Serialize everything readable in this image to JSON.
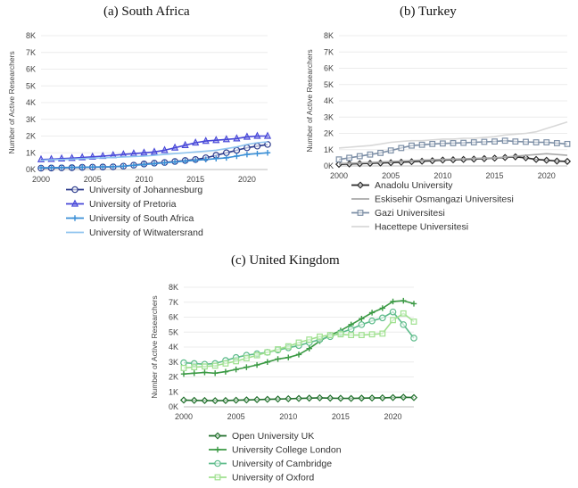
{
  "chart_data": [
    {
      "id": "sa",
      "type": "line",
      "title": "(a)  South Africa",
      "xlabel": "",
      "ylabel": "Number of Active Researchers",
      "xlim": [
        2000,
        2022
      ],
      "ylim": [
        0,
        8000
      ],
      "xticks": [
        "2000",
        "2005",
        "2010",
        "2015",
        "2020"
      ],
      "yticks": [
        "0K",
        "1K",
        "2K",
        "3K",
        "4K",
        "5K",
        "6K",
        "7K",
        "8K"
      ],
      "legend_position": "bottom",
      "series": [
        {
          "name": "University of Johannesburg",
          "color": "#2b3a8c",
          "marker": "circle",
          "x": [
            2000,
            2001,
            2002,
            2003,
            2004,
            2005,
            2006,
            2007,
            2008,
            2009,
            2010,
            2011,
            2012,
            2013,
            2014,
            2015,
            2016,
            2017,
            2018,
            2019,
            2020,
            2021,
            2022
          ],
          "values": [
            80,
            90,
            100,
            110,
            130,
            140,
            150,
            160,
            200,
            260,
            330,
            380,
            420,
            480,
            540,
            600,
            700,
            850,
            1000,
            1150,
            1300,
            1400,
            1500
          ]
        },
        {
          "name": "University of Pretoria",
          "color": "#4747d8",
          "marker": "triangle",
          "x": [
            2000,
            2001,
            2002,
            2003,
            2004,
            2005,
            2006,
            2007,
            2008,
            2009,
            2010,
            2011,
            2012,
            2013,
            2014,
            2015,
            2016,
            2017,
            2018,
            2019,
            2020,
            2021,
            2022
          ],
          "values": [
            600,
            620,
            650,
            680,
            720,
            760,
            800,
            850,
            900,
            950,
            1000,
            1050,
            1150,
            1300,
            1450,
            1600,
            1700,
            1750,
            1800,
            1850,
            1950,
            2000,
            2000
          ]
        },
        {
          "name": "University of South Africa",
          "color": "#3a8fd6",
          "marker": "plus",
          "x": [
            2000,
            2001,
            2002,
            2003,
            2004,
            2005,
            2006,
            2007,
            2008,
            2009,
            2010,
            2011,
            2012,
            2013,
            2014,
            2015,
            2016,
            2017,
            2018,
            2019,
            2020,
            2021,
            2022
          ],
          "values": [
            100,
            110,
            120,
            130,
            140,
            150,
            160,
            170,
            200,
            250,
            300,
            350,
            400,
            450,
            500,
            550,
            600,
            650,
            700,
            800,
            900,
            950,
            1000
          ]
        },
        {
          "name": "University of Witwatersrand",
          "color": "#8fc4ef",
          "marker": "none",
          "x": [
            2000,
            2001,
            2002,
            2003,
            2004,
            2005,
            2006,
            2007,
            2008,
            2009,
            2010,
            2011,
            2012,
            2013,
            2014,
            2015,
            2016,
            2017,
            2018,
            2019,
            2020,
            2021,
            2022
          ],
          "values": [
            550,
            580,
            600,
            620,
            650,
            680,
            700,
            720,
            750,
            780,
            800,
            850,
            900,
            950,
            1000,
            1050,
            1100,
            1150,
            1250,
            1350,
            1500,
            1600,
            1650
          ]
        }
      ]
    },
    {
      "id": "tr",
      "type": "line",
      "title": "(b)  Turkey",
      "xlabel": "",
      "ylabel": "Number of Active Researchers",
      "xlim": [
        2000,
        2022
      ],
      "ylim": [
        0,
        8000
      ],
      "xticks": [
        "2000",
        "2005",
        "2010",
        "2015",
        "2020"
      ],
      "yticks": [
        "0K",
        "1K",
        "2K",
        "3K",
        "4K",
        "5K",
        "6K",
        "7K",
        "8K"
      ],
      "legend_position": "bottom",
      "series": [
        {
          "name": "Anadolu University",
          "color": "#2a2a2a",
          "marker": "diamond",
          "x": [
            2000,
            2001,
            2002,
            2003,
            2004,
            2005,
            2006,
            2007,
            2008,
            2009,
            2010,
            2011,
            2012,
            2013,
            2014,
            2015,
            2016,
            2017,
            2018,
            2019,
            2020,
            2021,
            2022
          ],
          "values": [
            100,
            120,
            140,
            160,
            180,
            200,
            230,
            260,
            290,
            320,
            360,
            380,
            400,
            420,
            450,
            480,
            520,
            560,
            500,
            400,
            350,
            300,
            280
          ]
        },
        {
          "name": "Eskisehir Osmangazi Universitesi",
          "color": "#a9a9a9",
          "marker": "none",
          "x": [
            2000,
            2001,
            2002,
            2003,
            2004,
            2005,
            2006,
            2007,
            2008,
            2009,
            2010,
            2011,
            2012,
            2013,
            2014,
            2015,
            2016,
            2017,
            2018,
            2019,
            2020,
            2021,
            2022
          ],
          "values": [
            150,
            170,
            190,
            210,
            240,
            270,
            300,
            330,
            360,
            380,
            400,
            420,
            440,
            460,
            480,
            500,
            550,
            600,
            650,
            700,
            750,
            700,
            650
          ]
        },
        {
          "name": "Gazi Universitesi",
          "color": "#7d8fa6",
          "marker": "square",
          "x": [
            2000,
            2001,
            2002,
            2003,
            2004,
            2005,
            2006,
            2007,
            2008,
            2009,
            2010,
            2011,
            2012,
            2013,
            2014,
            2015,
            2016,
            2017,
            2018,
            2019,
            2020,
            2021,
            2022
          ],
          "values": [
            400,
            500,
            600,
            700,
            800,
            950,
            1100,
            1250,
            1300,
            1350,
            1380,
            1400,
            1420,
            1450,
            1480,
            1500,
            1550,
            1500,
            1480,
            1450,
            1450,
            1400,
            1350
          ]
        },
        {
          "name": "Hacettepe Universitesi",
          "color": "#d8d8d8",
          "marker": "none",
          "x": [
            2000,
            2001,
            2002,
            2003,
            2004,
            2005,
            2006,
            2007,
            2008,
            2009,
            2010,
            2011,
            2012,
            2013,
            2014,
            2015,
            2016,
            2017,
            2018,
            2019,
            2020,
            2021,
            2022
          ],
          "values": [
            1100,
            1150,
            1200,
            1250,
            1350,
            1450,
            1500,
            1550,
            1550,
            1600,
            1650,
            1650,
            1700,
            1700,
            1750,
            1800,
            1900,
            1950,
            2000,
            2100,
            2300,
            2500,
            2700
          ]
        }
      ]
    },
    {
      "id": "uk",
      "type": "line",
      "title": "(c) United Kingdom",
      "xlabel": "",
      "ylabel": "Number of Active Researchers",
      "xlim": [
        2000,
        2022
      ],
      "ylim": [
        0,
        8000
      ],
      "xticks": [
        "2000",
        "2005",
        "2010",
        "2015",
        "2020"
      ],
      "yticks": [
        "0K",
        "1K",
        "2K",
        "3K",
        "4K",
        "5K",
        "6K",
        "7K",
        "8K"
      ],
      "legend_position": "bottom",
      "series": [
        {
          "name": "Open University UK",
          "color": "#1f6e2a",
          "marker": "diamond",
          "x": [
            2000,
            2001,
            2002,
            2003,
            2004,
            2005,
            2006,
            2007,
            2008,
            2009,
            2010,
            2011,
            2012,
            2013,
            2014,
            2015,
            2016,
            2017,
            2018,
            2019,
            2020,
            2021,
            2022
          ],
          "values": [
            450,
            430,
            420,
            410,
            420,
            440,
            460,
            480,
            500,
            520,
            540,
            560,
            580,
            600,
            580,
            570,
            560,
            580,
            590,
            600,
            620,
            640,
            620
          ]
        },
        {
          "name": "University College London",
          "color": "#3b9a44",
          "marker": "plus",
          "x": [
            2000,
            2001,
            2002,
            2003,
            2004,
            2005,
            2006,
            2007,
            2008,
            2009,
            2010,
            2011,
            2012,
            2013,
            2014,
            2015,
            2016,
            2017,
            2018,
            2019,
            2020,
            2021,
            2022
          ],
          "values": [
            2200,
            2250,
            2300,
            2250,
            2350,
            2500,
            2650,
            2800,
            3000,
            3200,
            3300,
            3500,
            3900,
            4400,
            4800,
            5100,
            5500,
            5900,
            6300,
            6600,
            7050,
            7100,
            6900
          ]
        },
        {
          "name": "University of Cambridge",
          "color": "#5dbb8a",
          "marker": "circle",
          "x": [
            2000,
            2001,
            2002,
            2003,
            2004,
            2005,
            2006,
            2007,
            2008,
            2009,
            2010,
            2011,
            2012,
            2013,
            2014,
            2015,
            2016,
            2017,
            2018,
            2019,
            2020,
            2021,
            2022
          ],
          "values": [
            2950,
            2900,
            2850,
            2900,
            3100,
            3300,
            3450,
            3550,
            3650,
            3800,
            3950,
            4100,
            4300,
            4500,
            4700,
            4950,
            5200,
            5500,
            5750,
            5950,
            6350,
            5500,
            4600
          ]
        },
        {
          "name": "University of Oxford",
          "color": "#9fe08f",
          "marker": "square",
          "x": [
            2000,
            2001,
            2002,
            2003,
            2004,
            2005,
            2006,
            2007,
            2008,
            2009,
            2010,
            2011,
            2012,
            2013,
            2014,
            2015,
            2016,
            2017,
            2018,
            2019,
            2020,
            2021,
            2022
          ],
          "values": [
            2600,
            2650,
            2700,
            2750,
            2900,
            3050,
            3250,
            3450,
            3650,
            3850,
            4050,
            4300,
            4500,
            4700,
            4800,
            4850,
            4800,
            4800,
            4850,
            4900,
            5800,
            6250,
            5700
          ]
        }
      ]
    }
  ]
}
